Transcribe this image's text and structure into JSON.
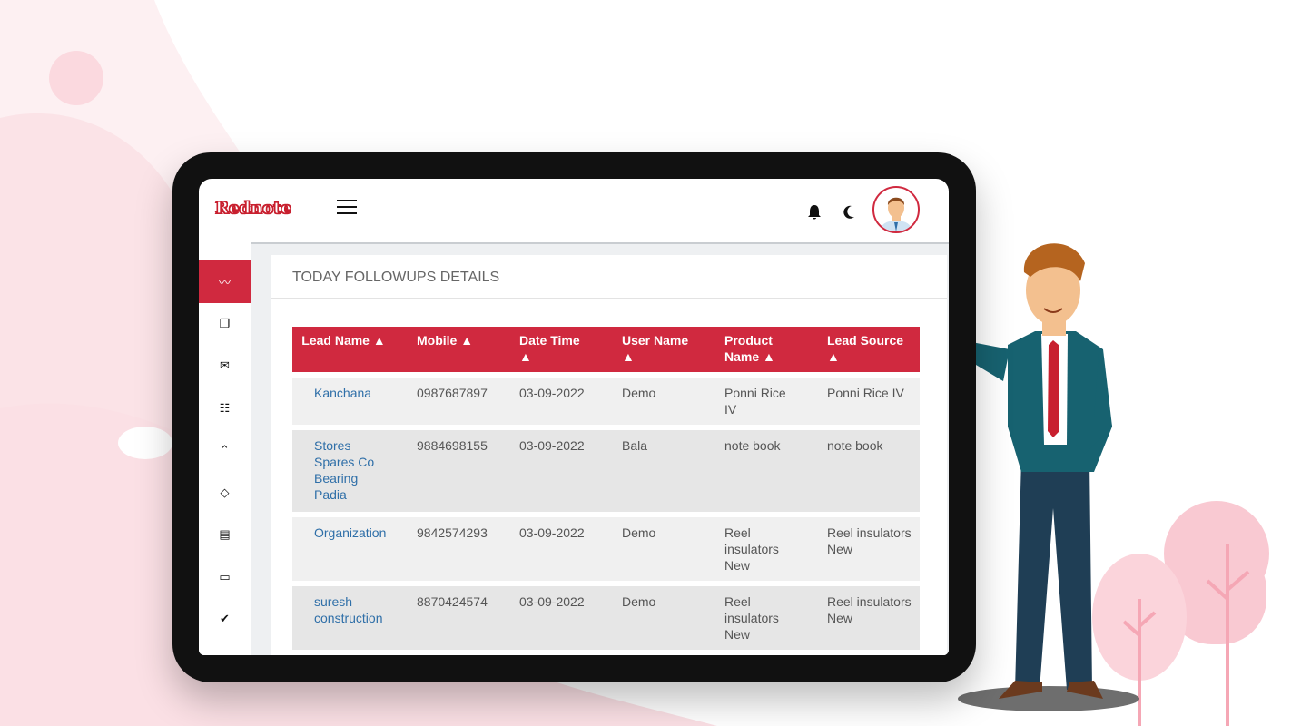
{
  "header": {
    "logo": "Rednote",
    "icons": [
      "menu-icon",
      "bell-icon",
      "moon-icon",
      "avatar"
    ]
  },
  "sidebar": {
    "items": [
      "pulse-icon",
      "windows-icon",
      "envelope-icon",
      "table-icon",
      "chevron-up-circle-icon",
      "gem-icon",
      "file-icon",
      "browser-icon",
      "check-circle-icon"
    ],
    "active": 0
  },
  "card": {
    "title": "TODAY FOLLOWUPS DETAILS"
  },
  "table": {
    "headers": [
      "Lead Name ▲",
      "Mobile ▲",
      "Date Time ▲",
      "User Name ▲",
      "Product Name ▲",
      "Lead Source ▲"
    ],
    "rows": [
      [
        "Kanchana",
        "0987687897",
        "03-09-2022",
        "Demo",
        "Ponni Rice IV",
        "Ponni Rice IV"
      ],
      [
        "Stores Spares Co Bearing Padia",
        "9884698155",
        "03-09-2022",
        "Bala",
        "note book",
        "note book"
      ],
      [
        "Organization",
        "9842574293",
        "03-09-2022",
        "Demo",
        "Reel insulators New",
        "Reel insulators New"
      ],
      [
        "suresh construction",
        "8870424574",
        "03-09-2022",
        "Demo",
        "Reel insulators New",
        "Reel insulators New"
      ]
    ]
  },
  "colors": {
    "accent": "#d0293f",
    "link": "#2f6fa8",
    "background_pink": "#fde6ea"
  }
}
